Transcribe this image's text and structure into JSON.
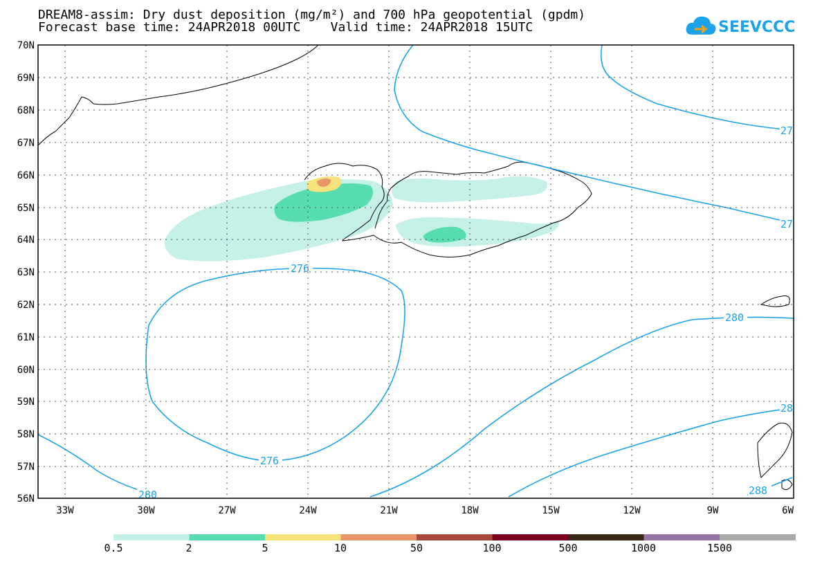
{
  "title": {
    "line1": "DREAM8-assim: Dry dust deposition (mg/m²) and 700 hPa geopotential (gpdm)",
    "line2": "Forecast base time: 24APR2018 00UTC    Valid time: 24APR2018 15UTC"
  },
  "logo": {
    "text": "SEEVCCC",
    "icon": "cloud-icon"
  },
  "axes": {
    "lat_labels": [
      "70N",
      "69N",
      "68N",
      "67N",
      "66N",
      "65N",
      "64N",
      "63N",
      "62N",
      "61N",
      "60N",
      "59N",
      "58N",
      "57N",
      "56N"
    ],
    "lon_labels": [
      "33W",
      "30W",
      "27W",
      "24W",
      "21W",
      "18W",
      "15W",
      "12W",
      "9W",
      "6W"
    ]
  },
  "contour_labels": [
    "276",
    "276",
    "280",
    "280",
    "27",
    "27",
    "28",
    "288"
  ],
  "colorbar": {
    "labels": [
      "0.5",
      "2",
      "5",
      "10",
      "50",
      "100",
      "500",
      "1000",
      "1500"
    ],
    "colors": [
      "#c4f0e8",
      "#57dcb0",
      "#f4e27a",
      "#e8956a",
      "#a84a3a",
      "#7a0020",
      "#3a2614",
      "#9474a4",
      "#aaaaaa"
    ]
  },
  "colors": {
    "contour": "#1aa3e8",
    "coast": "#000000"
  }
}
